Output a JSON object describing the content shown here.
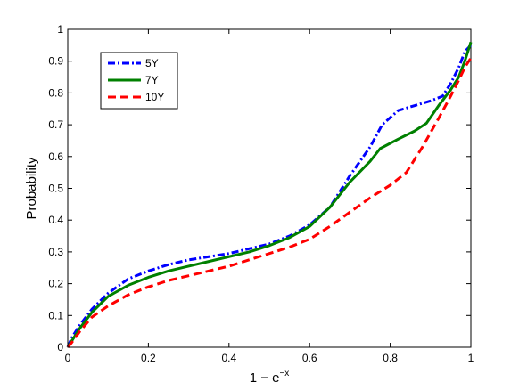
{
  "chart_data": {
    "type": "line",
    "title": "",
    "xlabel": "1 − e",
    "xlabel_superscript": "−x",
    "ylabel": "Probability",
    "xlim": [
      0,
      1
    ],
    "ylim": [
      0,
      1
    ],
    "x_ticks": [
      0,
      0.2,
      0.4,
      0.6,
      0.8,
      1
    ],
    "x_tick_labels": [
      "0",
      "0.2",
      "0.4",
      "0.6",
      "0.8",
      "1"
    ],
    "y_ticks": [
      0,
      0.1,
      0.2,
      0.3,
      0.4,
      0.5,
      0.6,
      0.7,
      0.8,
      0.9,
      1
    ],
    "y_tick_labels": [
      "0",
      "0.1",
      "0.2",
      "0.3",
      "0.4",
      "0.5",
      "0.6",
      "0.7",
      "0.8",
      "0.9",
      "1"
    ],
    "grid": false,
    "legend_position": "top-left",
    "series": [
      {
        "name": "5Y",
        "color": "#0000ff",
        "dash": "dash-dot",
        "points": [
          [
            0,
            0
          ],
          [
            0.01,
            0.03
          ],
          [
            0.03,
            0.07
          ],
          [
            0.06,
            0.12
          ],
          [
            0.1,
            0.17
          ],
          [
            0.15,
            0.215
          ],
          [
            0.2,
            0.24
          ],
          [
            0.25,
            0.26
          ],
          [
            0.3,
            0.275
          ],
          [
            0.35,
            0.285
          ],
          [
            0.4,
            0.295
          ],
          [
            0.45,
            0.31
          ],
          [
            0.5,
            0.325
          ],
          [
            0.55,
            0.35
          ],
          [
            0.6,
            0.385
          ],
          [
            0.65,
            0.44
          ],
          [
            0.7,
            0.54
          ],
          [
            0.75,
            0.63
          ],
          [
            0.78,
            0.7
          ],
          [
            0.82,
            0.745
          ],
          [
            0.86,
            0.76
          ],
          [
            0.9,
            0.775
          ],
          [
            0.93,
            0.79
          ],
          [
            0.95,
            0.83
          ],
          [
            0.97,
            0.88
          ],
          [
            0.985,
            0.93
          ],
          [
            1,
            0.95
          ]
        ]
      },
      {
        "name": "7Y",
        "color": "#008000",
        "dash": "solid",
        "points": [
          [
            0,
            0
          ],
          [
            0.01,
            0.02
          ],
          [
            0.03,
            0.06
          ],
          [
            0.06,
            0.11
          ],
          [
            0.1,
            0.16
          ],
          [
            0.15,
            0.195
          ],
          [
            0.2,
            0.22
          ],
          [
            0.25,
            0.24
          ],
          [
            0.3,
            0.255
          ],
          [
            0.35,
            0.27
          ],
          [
            0.4,
            0.285
          ],
          [
            0.45,
            0.3
          ],
          [
            0.5,
            0.32
          ],
          [
            0.55,
            0.345
          ],
          [
            0.6,
            0.38
          ],
          [
            0.65,
            0.44
          ],
          [
            0.7,
            0.52
          ],
          [
            0.75,
            0.585
          ],
          [
            0.775,
            0.625
          ],
          [
            0.82,
            0.655
          ],
          [
            0.86,
            0.68
          ],
          [
            0.89,
            0.705
          ],
          [
            0.92,
            0.76
          ],
          [
            0.95,
            0.81
          ],
          [
            0.97,
            0.85
          ],
          [
            0.985,
            0.9
          ],
          [
            1,
            0.96
          ]
        ]
      },
      {
        "name": "10Y",
        "color": "#ff0000",
        "dash": "dashed",
        "points": [
          [
            0,
            0
          ],
          [
            0.01,
            0.015
          ],
          [
            0.03,
            0.05
          ],
          [
            0.06,
            0.095
          ],
          [
            0.1,
            0.13
          ],
          [
            0.15,
            0.165
          ],
          [
            0.2,
            0.19
          ],
          [
            0.25,
            0.21
          ],
          [
            0.3,
            0.225
          ],
          [
            0.35,
            0.24
          ],
          [
            0.4,
            0.255
          ],
          [
            0.45,
            0.275
          ],
          [
            0.5,
            0.295
          ],
          [
            0.55,
            0.315
          ],
          [
            0.6,
            0.34
          ],
          [
            0.65,
            0.38
          ],
          [
            0.7,
            0.425
          ],
          [
            0.75,
            0.47
          ],
          [
            0.8,
            0.51
          ],
          [
            0.84,
            0.55
          ],
          [
            0.88,
            0.63
          ],
          [
            0.92,
            0.72
          ],
          [
            0.95,
            0.79
          ],
          [
            0.97,
            0.84
          ],
          [
            0.985,
            0.88
          ],
          [
            1,
            0.91
          ]
        ]
      }
    ]
  }
}
